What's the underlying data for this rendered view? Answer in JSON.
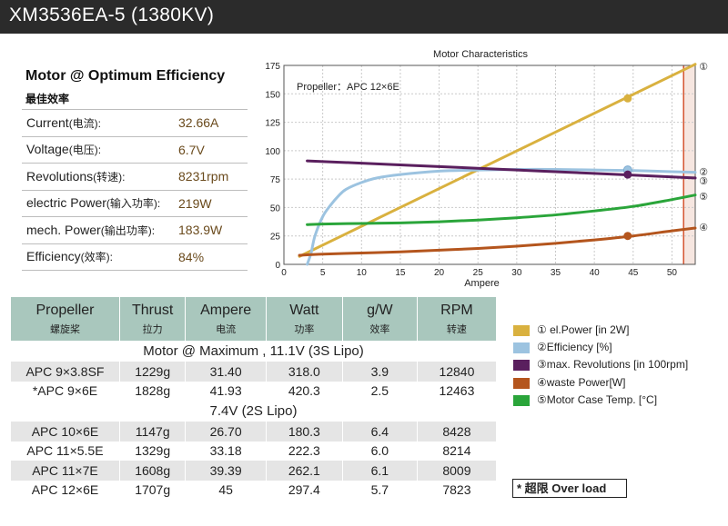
{
  "header": {
    "title": "XM3536EA-5 (1380KV)"
  },
  "optimum": {
    "heading": "Motor @ Optimum Efficiency",
    "subheading": "最佳效率",
    "rows": [
      {
        "label": "Current",
        "label_cn": "(电流):",
        "value": "32.66A"
      },
      {
        "label": "Voltage",
        "label_cn": "(电压):",
        "value": "6.7V"
      },
      {
        "label": "Revolutions",
        "label_cn": "(转速):",
        "value": "8231rpm"
      },
      {
        "label": "electric Power",
        "label_cn": "(输入功率):",
        "value": "219W"
      },
      {
        "label": "mech. Power",
        "label_cn": "(输出功率):",
        "value": "183.9W"
      },
      {
        "label": "Efficiency",
        "label_cn": "(效率):",
        "value": "84%"
      }
    ]
  },
  "table": {
    "headers": [
      {
        "en": "Propeller",
        "cn": "螺旋桨"
      },
      {
        "en": "Thrust",
        "cn": "拉力"
      },
      {
        "en": "Ampere",
        "cn": "电流"
      },
      {
        "en": "Watt",
        "cn": "功率"
      },
      {
        "en": "g/W",
        "cn": "效率"
      },
      {
        "en": "RPM",
        "cn": "转速"
      }
    ],
    "section1": "Motor @ Maximum , 11.1V (3S Lipo)",
    "rows1": [
      [
        "APC 9×3.8SF",
        "1229g",
        "31.40",
        "318.0",
        "3.9",
        "12840"
      ],
      [
        "*APC 9×6E",
        "1828g",
        "41.93",
        "420.3",
        "2.5",
        "12463"
      ]
    ],
    "section2": "7.4V (2S Lipo)",
    "rows2": [
      [
        "APC 10×6E",
        "1147g",
        "26.70",
        "180.3",
        "6.4",
        "8428"
      ],
      [
        "APC 11×5.5E",
        "1329g",
        "33.18",
        "222.3",
        "6.0",
        "8214"
      ],
      [
        "APC 11×7E",
        "1608g",
        "39.39",
        "262.1",
        "6.1",
        "8009"
      ],
      [
        "APC 12×6E",
        "1707g",
        "45",
        "297.4",
        "5.7",
        "7823"
      ]
    ]
  },
  "legend": [
    {
      "text": "① el.Power [in 2W]",
      "color": "#d9b13f"
    },
    {
      "text": "②Efficiency [%]",
      "color": "#9cc3e0"
    },
    {
      "text": "③max. Revolutions [in 100rpm]",
      "color": "#5a1f5e"
    },
    {
      "text": "④waste Power[W]",
      "color": "#b4551d"
    },
    {
      "text": "⑤Motor Case Temp. [°C]",
      "color": "#2aa53a"
    }
  ],
  "overload": {
    "prefix": "* 超限",
    "text": "Over load"
  },
  "chart_data": {
    "type": "line",
    "title": "Motor Characteristics",
    "annotation": "Propeller：APC 12×6E",
    "xlabel": "Ampere",
    "ylabel": "",
    "xlim": [
      0,
      53
    ],
    "ylim": [
      0,
      175
    ],
    "xticks": [
      0,
      5,
      10,
      15,
      20,
      25,
      30,
      35,
      40,
      45,
      50
    ],
    "yticks": [
      0,
      25,
      50,
      75,
      100,
      125,
      150,
      175
    ],
    "grid": true,
    "overload_from_x": 51.5,
    "series": [
      {
        "name": "①",
        "color": "#d9b13f",
        "x": [
          2,
          53
        ],
        "y": [
          7,
          176
        ],
        "marker": {
          "x": 44.3,
          "y": 146
        }
      },
      {
        "name": "②",
        "color": "#9cc3e0",
        "x": [
          3,
          3.5,
          4,
          5,
          6,
          7,
          8,
          10,
          12,
          15,
          20,
          25,
          30,
          35,
          40,
          45,
          50,
          53
        ],
        "y": [
          0,
          10,
          25,
          42,
          52,
          60,
          66,
          72,
          76,
          79,
          82,
          83,
          83.5,
          83.5,
          83,
          82.5,
          81.5,
          81
        ],
        "marker": {
          "x": 44.3,
          "y": 83
        }
      },
      {
        "name": "③",
        "color": "#5a1f5e",
        "x": [
          3,
          10,
          20,
          30,
          40,
          53
        ],
        "y": [
          91,
          89,
          86,
          83,
          80,
          76
        ],
        "marker": {
          "x": 44.3,
          "y": 79
        }
      },
      {
        "name": "④",
        "color": "#b4551d",
        "x": [
          2,
          5,
          10,
          15,
          20,
          25,
          30,
          35,
          40,
          45,
          50,
          53
        ],
        "y": [
          8,
          9,
          10,
          11,
          12.5,
          14,
          16,
          18.5,
          21.5,
          25,
          29.5,
          32
        ],
        "marker": {
          "x": 44.3,
          "y": 25
        }
      },
      {
        "name": "⑤",
        "color": "#2aa53a",
        "x": [
          3,
          5,
          10,
          15,
          20,
          25,
          30,
          35,
          40,
          45,
          50,
          53
        ],
        "y": [
          35,
          35.5,
          36,
          36.5,
          37.5,
          39,
          41,
          43.5,
          47,
          51,
          57,
          61
        ]
      }
    ],
    "end_labels": [
      "①",
      "②",
      "③",
      "④",
      "⑤"
    ]
  }
}
